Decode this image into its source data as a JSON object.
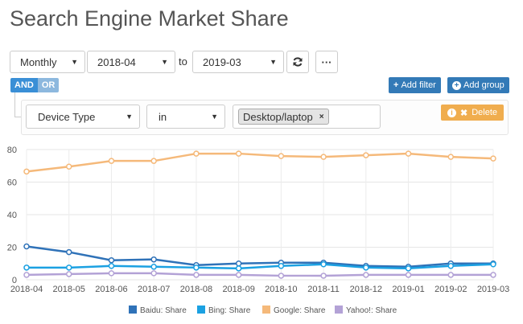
{
  "title": "Search Engine Market Share",
  "controls": {
    "granularity": "Monthly",
    "from": "2018-04",
    "to_label": "to",
    "to": "2019-03",
    "refresh_icon": "refresh-icon",
    "more_icon": "ellipsis-icon",
    "more_label": "···"
  },
  "filter": {
    "and_label": "AND",
    "or_label": "OR",
    "add_filter_label": "Add filter",
    "add_group_label": "Add group",
    "field": "Device Type",
    "operator": "in",
    "value_tag": "Desktop/laptop",
    "tag_remove": "×",
    "delete_label": "Delete"
  },
  "colors": {
    "Baidu": "#2f72b8",
    "Bing": "#1ba1e2",
    "Google": "#f5b97a",
    "Yahoo": "#b3a2d6"
  },
  "chart_data": {
    "type": "line",
    "x": [
      "2018-04",
      "2018-05",
      "2018-06",
      "2018-07",
      "2018-08",
      "2018-09",
      "2018-10",
      "2018-11",
      "2018-12",
      "2019-01",
      "2019-02",
      "2019-03"
    ],
    "ylim": [
      0,
      80
    ],
    "yticks": [
      0,
      20,
      40,
      60,
      80
    ],
    "grid": true,
    "legend_position": "bottom",
    "series": [
      {
        "name": "Baidu: Share",
        "key": "Baidu",
        "values": [
          20.5,
          17,
          12,
          12.5,
          9,
          10,
          10.5,
          10.5,
          8.5,
          8,
          10,
          10
        ]
      },
      {
        "name": "Bing: Share",
        "key": "Bing",
        "values": [
          7.5,
          7.5,
          8.5,
          8,
          7.5,
          7,
          8.5,
          9.5,
          7.5,
          7,
          8.5,
          9.5
        ]
      },
      {
        "name": "Google: Share",
        "key": "Google",
        "values": [
          66.5,
          69.5,
          73,
          73,
          77.5,
          77.5,
          76,
          75.5,
          76.5,
          77.5,
          75.5,
          74.5
        ]
      },
      {
        "name": "Yahoo!: Share",
        "key": "Yahoo",
        "values": [
          3,
          3.5,
          4,
          4,
          3,
          3,
          2.5,
          2.5,
          3,
          3,
          3,
          3
        ]
      }
    ]
  }
}
